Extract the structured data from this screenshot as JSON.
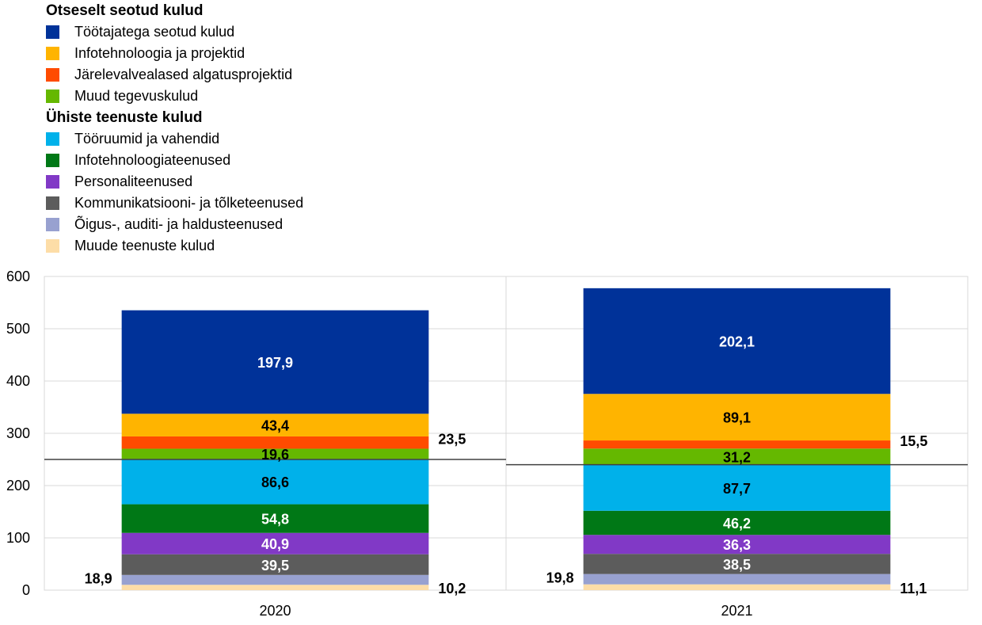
{
  "legend": {
    "group1_title": "Otseselt seotud kulud",
    "group2_title": "Ühiste teenuste kulud",
    "group1_items": [
      {
        "label": "Töötajatega seotud kulud",
        "color": "#003299"
      },
      {
        "label": "Infotehnoloogia ja projektid",
        "color": "#FFB400"
      },
      {
        "label": "Järelevalvealased algatusprojektid",
        "color": "#FF4B00"
      },
      {
        "label": "Muud tegevuskulud",
        "color": "#65B800"
      }
    ],
    "group2_items": [
      {
        "label": "Tööruumid ja vahendid",
        "color": "#00B1EA"
      },
      {
        "label": "Infotehnoloogiateenused",
        "color": "#007816"
      },
      {
        "label": "Personaliteenused",
        "color": "#8139C6"
      },
      {
        "label": "Kommunikatsiooni- ja tõlketeenused",
        "color": "#5C5C5C"
      },
      {
        "label": "Õigus-, auditi- ja haldusteenused",
        "color": "#98A1D0"
      },
      {
        "label": "Muude teenuste kulud",
        "color": "#FDDDA7"
      }
    ]
  },
  "chart_data": {
    "type": "bar",
    "stacked": true,
    "categories": [
      "2020",
      "2021"
    ],
    "ylim": [
      0,
      600
    ],
    "yticks": [
      0,
      100,
      200,
      300,
      400,
      500,
      600
    ],
    "grid": true,
    "series": [
      {
        "name": "Muude teenuste kulud",
        "color": "#FDDDA7",
        "values": [
          10.2,
          11.1
        ],
        "labels": [
          "10,2",
          "11,1"
        ],
        "label_pos": "right",
        "label_color": "#000000"
      },
      {
        "name": "Õigus-, auditi- ja haldusteenused",
        "color": "#98A1D0",
        "values": [
          18.9,
          19.8
        ],
        "labels": [
          "18,9",
          "19,8"
        ],
        "label_pos": "left",
        "label_color": "#000000"
      },
      {
        "name": "Kommunikatsiooni- ja tõlketeenused",
        "color": "#5C5C5C",
        "values": [
          39.5,
          38.5
        ],
        "labels": [
          "39,5",
          "38,5"
        ],
        "label_pos": "inside",
        "label_color": "#ffffff"
      },
      {
        "name": "Personaliteenused",
        "color": "#8139C6",
        "values": [
          40.9,
          36.3
        ],
        "labels": [
          "40,9",
          "36,3"
        ],
        "label_pos": "inside",
        "label_color": "#ffffff"
      },
      {
        "name": "Infotehnoloogiateenused",
        "color": "#007816",
        "values": [
          54.8,
          46.2
        ],
        "labels": [
          "54,8",
          "46,2"
        ],
        "label_pos": "inside",
        "label_color": "#ffffff"
      },
      {
        "name": "Tööruumid ja vahendid",
        "color": "#00B1EA",
        "values": [
          86.6,
          87.7
        ],
        "labels": [
          "86,6",
          "87,7"
        ],
        "label_pos": "inside",
        "label_color": "#000000"
      },
      {
        "name": "Muud tegevuskulud",
        "color": "#65B800",
        "values": [
          19.6,
          31.2
        ],
        "labels": [
          "19,6",
          "31,2"
        ],
        "label_pos": "inside",
        "label_color": "#000000"
      },
      {
        "name": "Järelevalvealased algatusprojektid",
        "color": "#FF4B00",
        "values": [
          23.5,
          15.5
        ],
        "labels": [
          "23,5",
          "15,5"
        ],
        "label_pos": "right",
        "label_color": "#000000"
      },
      {
        "name": "Infotehnoloogia ja projektid",
        "color": "#FFB400",
        "values": [
          43.4,
          89.1
        ],
        "labels": [
          "43,4",
          "89,1"
        ],
        "label_pos": "inside",
        "label_color": "#000000"
      },
      {
        "name": "Töötajatega seotud kulud",
        "color": "#003299",
        "values": [
          197.9,
          202.1
        ],
        "labels": [
          "197,9",
          "202,1"
        ],
        "label_pos": "inside",
        "label_color": "#ffffff"
      }
    ],
    "reference_lines": [
      {
        "category": "2020",
        "value": 250.0
      },
      {
        "category": "2021",
        "value": 240.0
      }
    ]
  }
}
